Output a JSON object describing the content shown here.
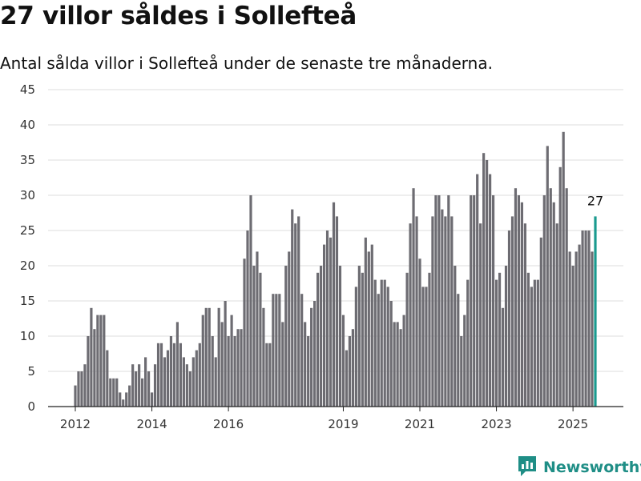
{
  "header": {
    "title": "27 villor såldes i Sollefteå",
    "subtitle": "Antal sålda villor i Sollefteå under de senaste tre månaderna."
  },
  "brand": {
    "name": "Newsworthy",
    "icon": "newsworthy-logo-icon",
    "color": "#1f8e86"
  },
  "chart_data": {
    "type": "bar",
    "title": "27 villor såldes i Sollefteå",
    "subtitle": "Antal sålda villor i Sollefteå under de senaste tre månaderna.",
    "xlabel": "",
    "ylabel": "",
    "ylim": [
      0,
      45
    ],
    "yticks": [
      0,
      5,
      10,
      15,
      20,
      25,
      30,
      35,
      40,
      45
    ],
    "xticks": [
      {
        "label": "2012",
        "date": "2012-01"
      },
      {
        "label": "2014",
        "date": "2014-01"
      },
      {
        "label": "2016",
        "date": "2016-01"
      },
      {
        "label": "2019",
        "date": "2019-01"
      },
      {
        "label": "2021",
        "date": "2021-01"
      },
      {
        "label": "2023",
        "date": "2023-01"
      },
      {
        "label": "2025",
        "date": "2025-01"
      }
    ],
    "grid": true,
    "bar_color": "#6d6c72",
    "highlight_color": "#1a9a8f",
    "highlight": {
      "date": "2025-08",
      "value": 27,
      "label": "27"
    },
    "dates": [
      "2012-01",
      "2012-02",
      "2012-03",
      "2012-04",
      "2012-05",
      "2012-06",
      "2012-07",
      "2012-08",
      "2012-09",
      "2012-10",
      "2012-11",
      "2012-12",
      "2013-01",
      "2013-02",
      "2013-03",
      "2013-04",
      "2013-05",
      "2013-06",
      "2013-07",
      "2013-08",
      "2013-09",
      "2013-10",
      "2013-11",
      "2013-12",
      "2014-01",
      "2014-02",
      "2014-03",
      "2014-04",
      "2014-05",
      "2014-06",
      "2014-07",
      "2014-08",
      "2014-09",
      "2014-10",
      "2014-11",
      "2014-12",
      "2015-01",
      "2015-02",
      "2015-03",
      "2015-04",
      "2015-05",
      "2015-06",
      "2015-07",
      "2015-08",
      "2015-09",
      "2015-10",
      "2015-11",
      "2015-12",
      "2016-01",
      "2016-02",
      "2016-03",
      "2016-04",
      "2016-05",
      "2016-06",
      "2016-07",
      "2016-08",
      "2016-09",
      "2016-10",
      "2016-11",
      "2016-12",
      "2017-01",
      "2017-02",
      "2017-03",
      "2017-04",
      "2017-05",
      "2017-06",
      "2017-07",
      "2017-08",
      "2017-09",
      "2017-10",
      "2017-11",
      "2017-12",
      "2018-01",
      "2018-02",
      "2018-03",
      "2018-04",
      "2018-05",
      "2018-06",
      "2018-07",
      "2018-08",
      "2018-09",
      "2018-10",
      "2018-11",
      "2018-12",
      "2019-01",
      "2019-02",
      "2019-03",
      "2019-04",
      "2019-05",
      "2019-06",
      "2019-07",
      "2019-08",
      "2019-09",
      "2019-10",
      "2019-11",
      "2019-12",
      "2020-01",
      "2020-02",
      "2020-03",
      "2020-04",
      "2020-05",
      "2020-06",
      "2020-07",
      "2020-08",
      "2020-09",
      "2020-10",
      "2020-11",
      "2020-12",
      "2021-01",
      "2021-02",
      "2021-03",
      "2021-04",
      "2021-05",
      "2021-06",
      "2021-07",
      "2021-08",
      "2021-09",
      "2021-10",
      "2021-11",
      "2021-12",
      "2022-01",
      "2022-02",
      "2022-03",
      "2022-04",
      "2022-05",
      "2022-06",
      "2022-07",
      "2022-08",
      "2022-09",
      "2022-10",
      "2022-11",
      "2022-12",
      "2023-01",
      "2023-02",
      "2023-03",
      "2023-04",
      "2023-05",
      "2023-06",
      "2023-07",
      "2023-08",
      "2023-09",
      "2023-10",
      "2023-11",
      "2023-12",
      "2024-01",
      "2024-02",
      "2024-03",
      "2024-04",
      "2024-05",
      "2024-06",
      "2024-07",
      "2024-08",
      "2024-09",
      "2024-10",
      "2024-11",
      "2024-12",
      "2025-01",
      "2025-02",
      "2025-03",
      "2025-04",
      "2025-05",
      "2025-06",
      "2025-07",
      "2025-08"
    ],
    "values": [
      3,
      5,
      5,
      6,
      10,
      14,
      11,
      13,
      13,
      13,
      8,
      4,
      4,
      4,
      2,
      1,
      2,
      3,
      6,
      5,
      6,
      4,
      7,
      5,
      2,
      6,
      9,
      9,
      7,
      8,
      10,
      9,
      12,
      9,
      7,
      6,
      5,
      7,
      8,
      9,
      13,
      14,
      14,
      10,
      7,
      14,
      12,
      15,
      10,
      13,
      10,
      11,
      11,
      21,
      25,
      30,
      20,
      22,
      19,
      14,
      9,
      9,
      16,
      16,
      16,
      12,
      20,
      22,
      28,
      26,
      27,
      16,
      12,
      10,
      14,
      15,
      19,
      20,
      23,
      25,
      24,
      29,
      27,
      20,
      13,
      8,
      10,
      11,
      17,
      20,
      19,
      24,
      22,
      23,
      18,
      16,
      18,
      18,
      17,
      15,
      12,
      12,
      11,
      13,
      19,
      26,
      31,
      27,
      21,
      17,
      17,
      19,
      27,
      30,
      30,
      28,
      27,
      30,
      27,
      20,
      16,
      10,
      13,
      18,
      30,
      30,
      33,
      26,
      36,
      35,
      33,
      30,
      18,
      19,
      14,
      20,
      25,
      27,
      31,
      30,
      29,
      26,
      19,
      17,
      18,
      18,
      24,
      30,
      37,
      31,
      29,
      26,
      34,
      39,
      31,
      22,
      20,
      22,
      23,
      25,
      25,
      25,
      22,
      27
    ]
  }
}
